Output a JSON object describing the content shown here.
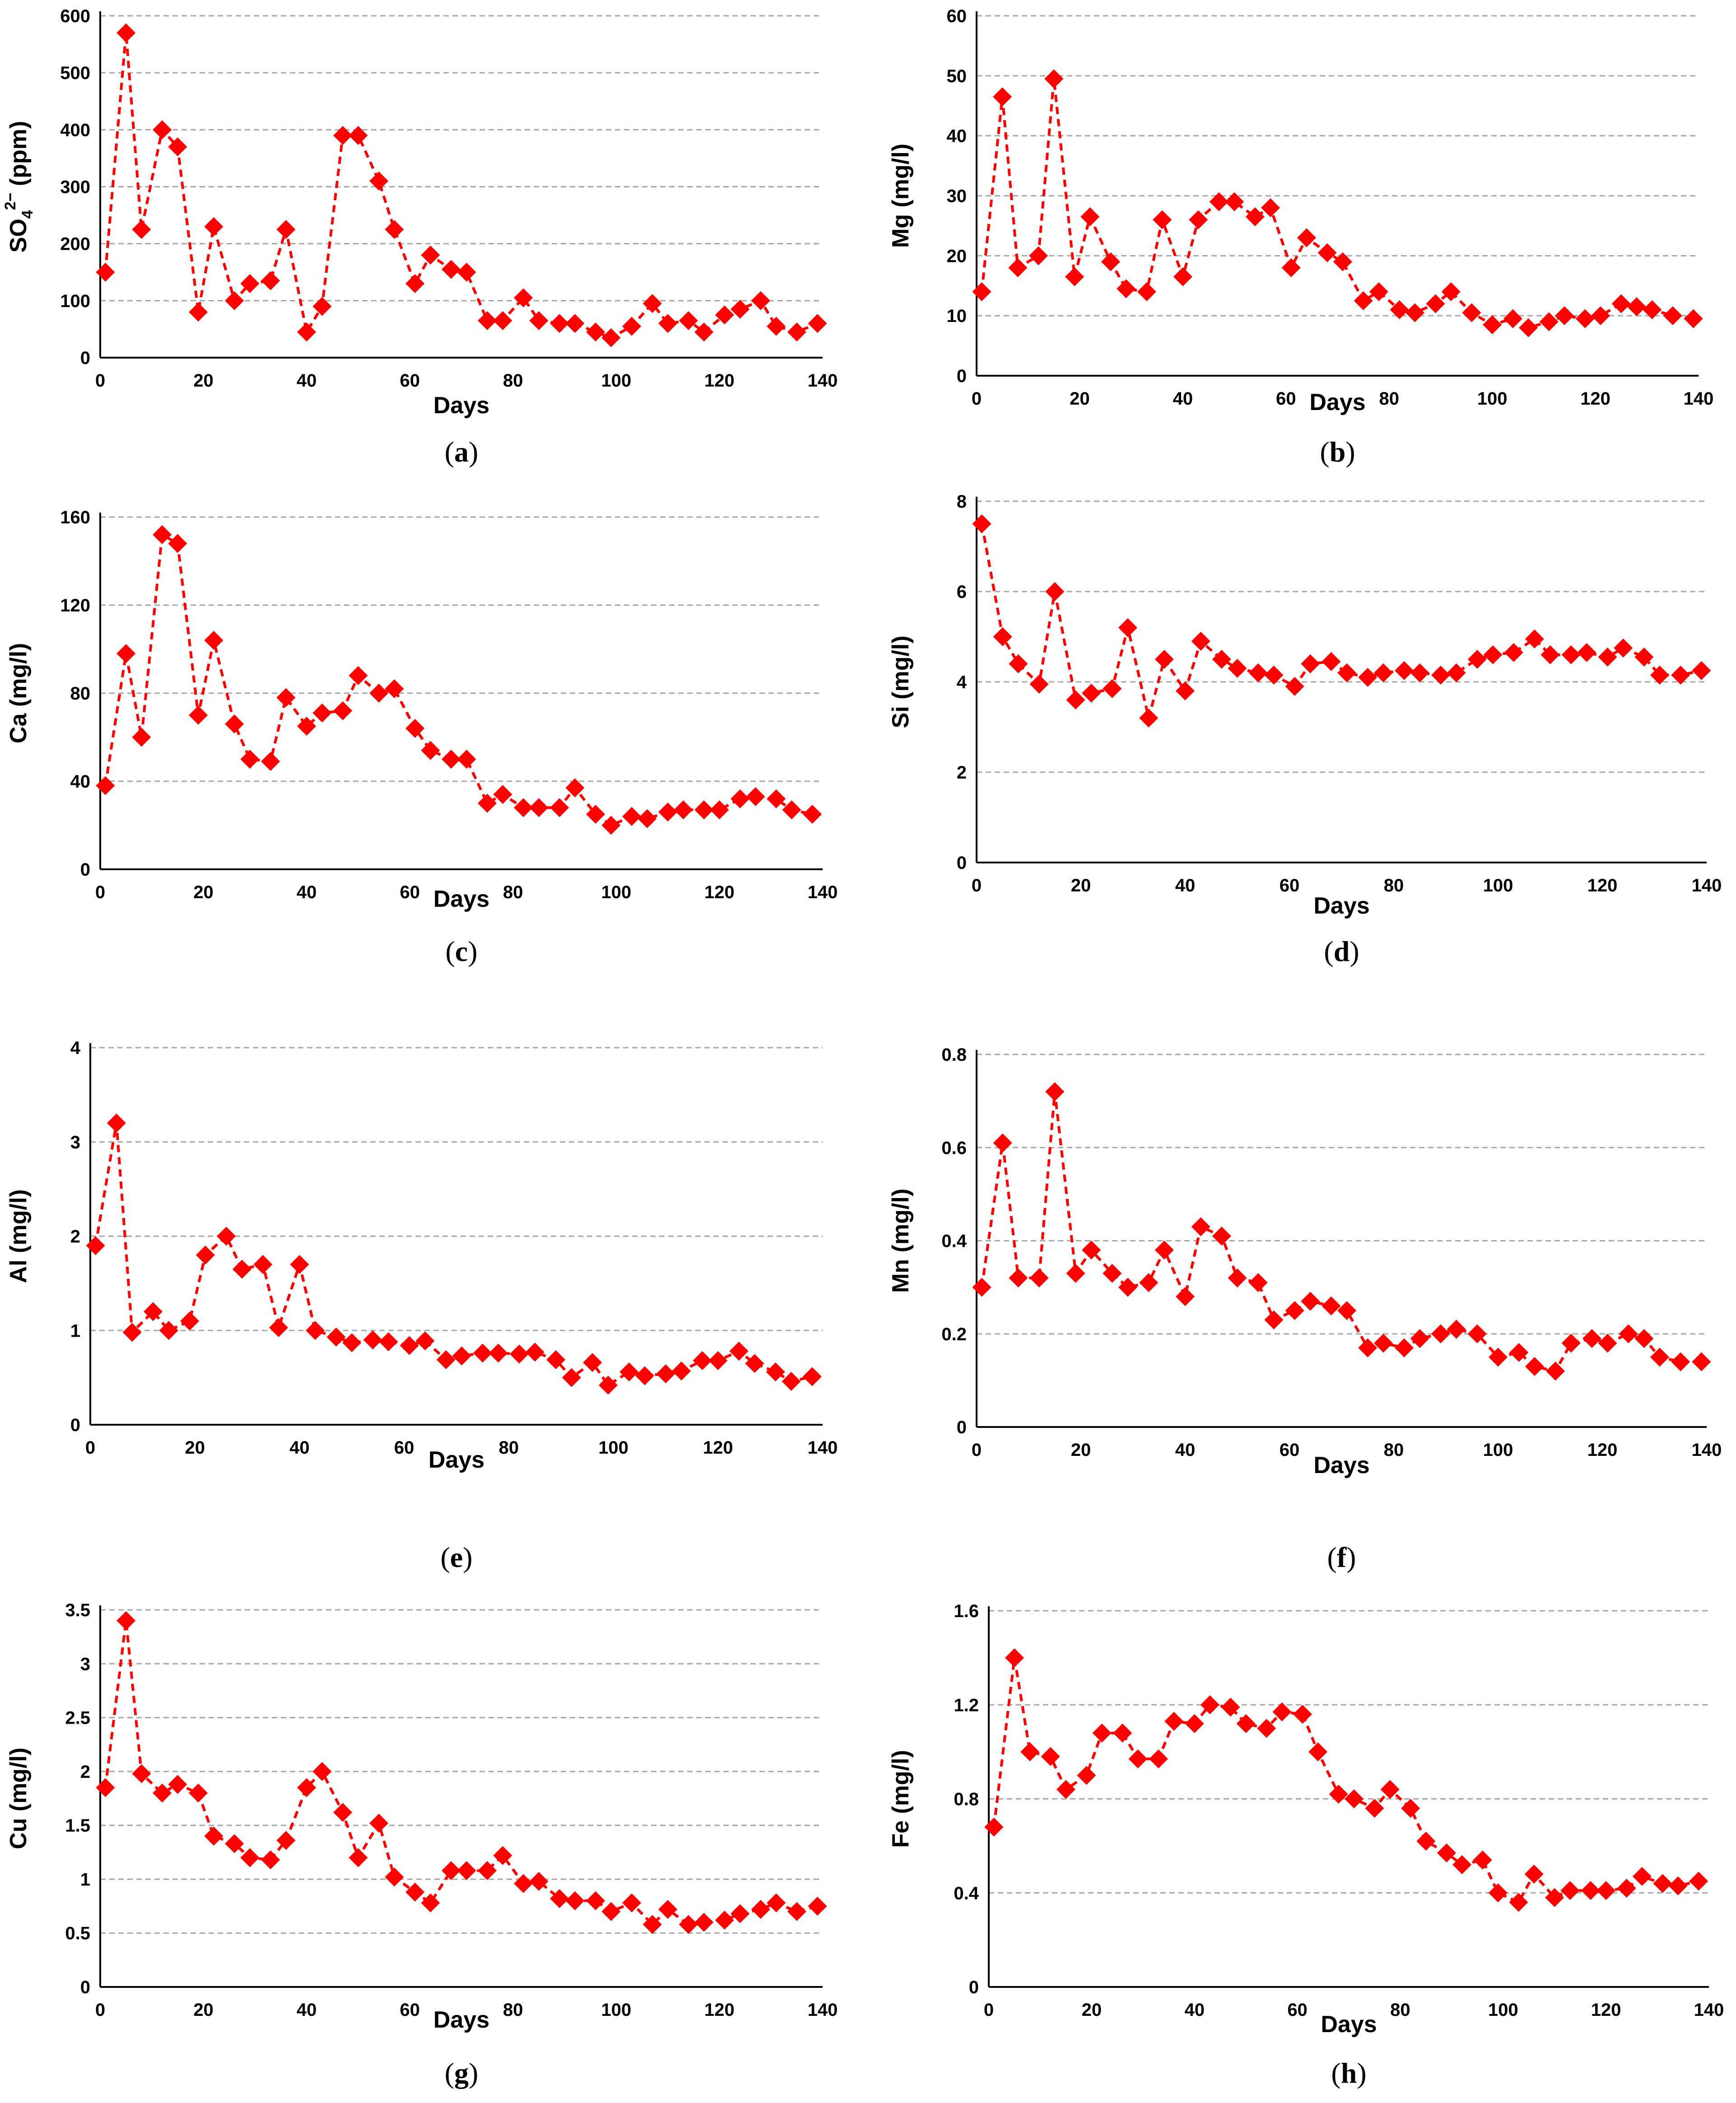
{
  "chart_data": [
    {
      "id": "a",
      "type": "line",
      "panel_label": "a",
      "xlabel": "Days",
      "ylabel": "SO4 2− (ppm)",
      "ylabel_parts": {
        "base": "SO",
        "sub": "4",
        "sup": "2−",
        "rest": " (ppm)"
      },
      "xlim": [
        0,
        140
      ],
      "ylim": [
        0,
        600
      ],
      "x_ticks": [
        "0",
        "20",
        "40",
        "60",
        "80",
        "100",
        "120",
        "140"
      ],
      "y_ticks": [
        "0",
        "100",
        "200",
        "300",
        "400",
        "500",
        "600"
      ],
      "x": [
        1,
        5,
        8,
        12,
        15,
        19,
        22,
        26,
        29,
        33,
        36,
        40,
        43,
        47,
        50,
        54,
        57,
        61,
        64,
        68,
        71,
        75,
        78,
        82,
        85,
        89,
        92,
        96,
        99,
        103,
        107,
        110,
        114,
        117,
        121,
        124,
        128,
        131,
        135,
        139
      ],
      "values": [
        150,
        570,
        225,
        400,
        370,
        80,
        230,
        100,
        130,
        135,
        225,
        45,
        90,
        390,
        390,
        310,
        225,
        130,
        180,
        155,
        150,
        65,
        65,
        105,
        65,
        60,
        60,
        45,
        35,
        55,
        95,
        60,
        65,
        45,
        75,
        85,
        100,
        55,
        45,
        60
      ]
    },
    {
      "id": "b",
      "type": "line",
      "panel_label": "b",
      "xlabel": "Days",
      "ylabel": "Mg (mg/l)",
      "xlim": [
        0,
        140
      ],
      "ylim": [
        0,
        60
      ],
      "x_ticks": [
        "0",
        "20",
        "40",
        "60",
        "80",
        "100",
        "120",
        "140"
      ],
      "y_ticks": [
        "0",
        "10",
        "20",
        "30",
        "40",
        "50",
        "60"
      ],
      "x": [
        1,
        5,
        8,
        12,
        15,
        19,
        22,
        26,
        29,
        33,
        36,
        40,
        43,
        47,
        50,
        54,
        57,
        61,
        64,
        68,
        71,
        75,
        78,
        82,
        85,
        89,
        92,
        96,
        100,
        104,
        107,
        111,
        114,
        118,
        121,
        125,
        128,
        131,
        135,
        139
      ],
      "values": [
        14,
        46.5,
        18,
        20,
        49.5,
        16.5,
        26.5,
        19,
        14.5,
        14,
        26,
        16.5,
        26,
        29,
        29,
        26.5,
        28,
        18,
        23,
        20.5,
        19,
        12.5,
        14,
        11,
        10.5,
        12,
        14,
        10.5,
        8.5,
        9.5,
        8,
        9,
        10,
        9.5,
        10,
        12,
        11.5,
        11,
        10,
        9.5
      ]
    },
    {
      "id": "c",
      "type": "line",
      "panel_label": "c",
      "xlabel": "Days",
      "ylabel": "Ca (mg/l)",
      "xlim": [
        0,
        140
      ],
      "ylim": [
        0,
        160
      ],
      "x_ticks": [
        "0",
        "20",
        "40",
        "60",
        "80",
        "100",
        "120",
        "140"
      ],
      "y_ticks": [
        "0",
        "40",
        "80",
        "120",
        "160"
      ],
      "x": [
        1,
        5,
        8,
        12,
        15,
        19,
        22,
        26,
        29,
        33,
        36,
        40,
        43,
        47,
        50,
        54,
        57,
        61,
        64,
        68,
        71,
        75,
        78,
        82,
        85,
        89,
        92,
        96,
        99,
        103,
        106,
        110,
        113,
        117,
        120,
        124,
        127,
        131,
        134,
        138
      ],
      "values": [
        38,
        98,
        60,
        152,
        148,
        70,
        104,
        66,
        50,
        49,
        78,
        65,
        71,
        72,
        88,
        80,
        82,
        64,
        54,
        50,
        50,
        30,
        34,
        28,
        28,
        28,
        37,
        25,
        20,
        24,
        23,
        26,
        27,
        27,
        27,
        32,
        33,
        32,
        27,
        25
      ]
    },
    {
      "id": "d",
      "type": "line",
      "panel_label": "d",
      "xlabel": "Days",
      "ylabel": "Si (mg/l)",
      "xlim": [
        0,
        140
      ],
      "ylim": [
        0,
        8
      ],
      "x_ticks": [
        "0",
        "20",
        "40",
        "60",
        "80",
        "100",
        "120",
        "140"
      ],
      "y_ticks": [
        "0",
        "2",
        "4",
        "6",
        "8"
      ],
      "x": [
        1,
        5,
        8,
        12,
        15,
        19,
        22,
        26,
        29,
        33,
        36,
        40,
        43,
        47,
        50,
        54,
        57,
        61,
        64,
        68,
        71,
        75,
        78,
        82,
        85,
        89,
        92,
        96,
        99,
        103,
        107,
        110,
        114,
        117,
        121,
        124,
        128,
        131,
        135,
        139
      ],
      "values": [
        7.5,
        5,
        4.4,
        3.95,
        6,
        3.6,
        3.75,
        3.85,
        5.2,
        3.2,
        4.5,
        3.8,
        4.9,
        4.5,
        4.3,
        4.2,
        4.15,
        3.9,
        4.4,
        4.45,
        4.2,
        4.1,
        4.2,
        4.25,
        4.2,
        4.15,
        4.2,
        4.5,
        4.6,
        4.65,
        4.95,
        4.6,
        4.6,
        4.65,
        4.55,
        4.75,
        4.55,
        4.15,
        4.15,
        4.25
      ]
    },
    {
      "id": "e",
      "type": "line",
      "panel_label": "e",
      "xlabel": "Days",
      "ylabel": "Al (mg/l)",
      "xlim": [
        0,
        140
      ],
      "ylim": [
        0,
        4
      ],
      "x_ticks": [
        "0",
        "20",
        "40",
        "60",
        "80",
        "100",
        "120",
        "140"
      ],
      "y_ticks": [
        "0",
        "1",
        "2",
        "3",
        "4"
      ],
      "x": [
        1,
        5,
        8,
        12,
        15,
        19,
        22,
        26,
        29,
        33,
        36,
        40,
        43,
        47,
        50,
        54,
        57,
        61,
        64,
        68,
        71,
        75,
        78,
        82,
        85,
        89,
        92,
        96,
        99,
        103,
        106,
        110,
        113,
        117,
        120,
        124,
        127,
        131,
        134,
        138
      ],
      "values": [
        1.9,
        3.2,
        0.98,
        1.2,
        1,
        1.1,
        1.8,
        2,
        1.65,
        1.7,
        1.03,
        1.7,
        1,
        0.93,
        0.87,
        0.9,
        0.88,
        0.84,
        0.89,
        0.69,
        0.73,
        0.76,
        0.76,
        0.75,
        0.77,
        0.69,
        0.5,
        0.66,
        0.42,
        0.56,
        0.52,
        0.54,
        0.57,
        0.68,
        0.68,
        0.78,
        0.65,
        0.56,
        0.46,
        0.51
      ]
    },
    {
      "id": "f",
      "type": "line",
      "panel_label": "f",
      "xlabel": "Days",
      "ylabel": "Mn (mg/l)",
      "xlim": [
        0,
        140
      ],
      "ylim": [
        0,
        0.8
      ],
      "x_ticks": [
        "0",
        "20",
        "40",
        "60",
        "80",
        "100",
        "120",
        "140"
      ],
      "y_ticks": [
        "0",
        "0.2",
        "0.4",
        "0.6",
        "0.8"
      ],
      "x": [
        1,
        5,
        8,
        12,
        15,
        19,
        22,
        26,
        29,
        33,
        36,
        40,
        43,
        47,
        50,
        54,
        57,
        61,
        64,
        68,
        71,
        75,
        78,
        82,
        85,
        89,
        92,
        96,
        100,
        104,
        107,
        111,
        114,
        118,
        121,
        125,
        128,
        131,
        135,
        139
      ],
      "values": [
        0.3,
        0.61,
        0.32,
        0.32,
        0.72,
        0.33,
        0.38,
        0.33,
        0.3,
        0.31,
        0.38,
        0.28,
        0.43,
        0.41,
        0.32,
        0.31,
        0.23,
        0.25,
        0.27,
        0.26,
        0.25,
        0.17,
        0.18,
        0.17,
        0.19,
        0.2,
        0.21,
        0.2,
        0.15,
        0.16,
        0.13,
        0.12,
        0.18,
        0.19,
        0.18,
        0.2,
        0.19,
        0.15,
        0.14,
        0.14
      ]
    },
    {
      "id": "g",
      "type": "line",
      "panel_label": "g",
      "xlabel": "Days",
      "ylabel": "Cu (mg/l)",
      "xlim": [
        0,
        140
      ],
      "ylim": [
        0,
        3.5
      ],
      "x_ticks": [
        "0",
        "20",
        "40",
        "60",
        "80",
        "100",
        "120",
        "140"
      ],
      "y_ticks": [
        "0",
        "0.5",
        "1",
        "1.5",
        "2",
        "2.5",
        "3",
        "3.5"
      ],
      "x": [
        1,
        5,
        8,
        12,
        15,
        19,
        22,
        26,
        29,
        33,
        36,
        40,
        43,
        47,
        50,
        54,
        57,
        61,
        64,
        68,
        71,
        75,
        78,
        82,
        85,
        89,
        92,
        96,
        99,
        103,
        107,
        110,
        114,
        117,
        121,
        124,
        128,
        131,
        135,
        139
      ],
      "values": [
        1.85,
        3.4,
        1.98,
        1.8,
        1.88,
        1.8,
        1.4,
        1.33,
        1.2,
        1.18,
        1.36,
        1.85,
        2,
        1.62,
        1.2,
        1.52,
        1.02,
        0.88,
        0.78,
        1.08,
        1.08,
        1.08,
        1.22,
        0.96,
        0.98,
        0.82,
        0.8,
        0.8,
        0.7,
        0.78,
        0.58,
        0.72,
        0.58,
        0.6,
        0.62,
        0.68,
        0.72,
        0.78,
        0.7,
        0.75
      ]
    },
    {
      "id": "h",
      "type": "line",
      "panel_label": "h",
      "xlabel": "Days",
      "ylabel": "Fe (mg/l)",
      "xlim": [
        0,
        140
      ],
      "ylim": [
        0,
        1.6
      ],
      "x_ticks": [
        "0",
        "20",
        "40",
        "60",
        "80",
        "100",
        "120",
        "140"
      ],
      "y_ticks": [
        "0",
        "0.4",
        "0.8",
        "1.2",
        "1.6"
      ],
      "x": [
        1,
        5,
        8,
        12,
        15,
        19,
        22,
        26,
        29,
        33,
        36,
        40,
        43,
        47,
        50,
        54,
        57,
        61,
        64,
        68,
        71,
        75,
        78,
        82,
        85,
        89,
        92,
        96,
        99,
        103,
        106,
        110,
        113,
        117,
        120,
        124,
        127,
        131,
        134,
        138
      ],
      "values": [
        0.68,
        1.4,
        1,
        0.98,
        0.84,
        0.9,
        1.08,
        1.08,
        0.97,
        0.97,
        1.13,
        1.12,
        1.2,
        1.19,
        1.12,
        1.1,
        1.17,
        1.16,
        1,
        0.82,
        0.8,
        0.76,
        0.84,
        0.76,
        0.62,
        0.57,
        0.52,
        0.54,
        0.4,
        0.36,
        0.48,
        0.38,
        0.41,
        0.41,
        0.41,
        0.42,
        0.47,
        0.44,
        0.43,
        0.45
      ]
    }
  ],
  "colors": {
    "series": "#ff0000",
    "gridline": "#a6a6a6",
    "axis": "#000000",
    "background": "#ffffff"
  }
}
